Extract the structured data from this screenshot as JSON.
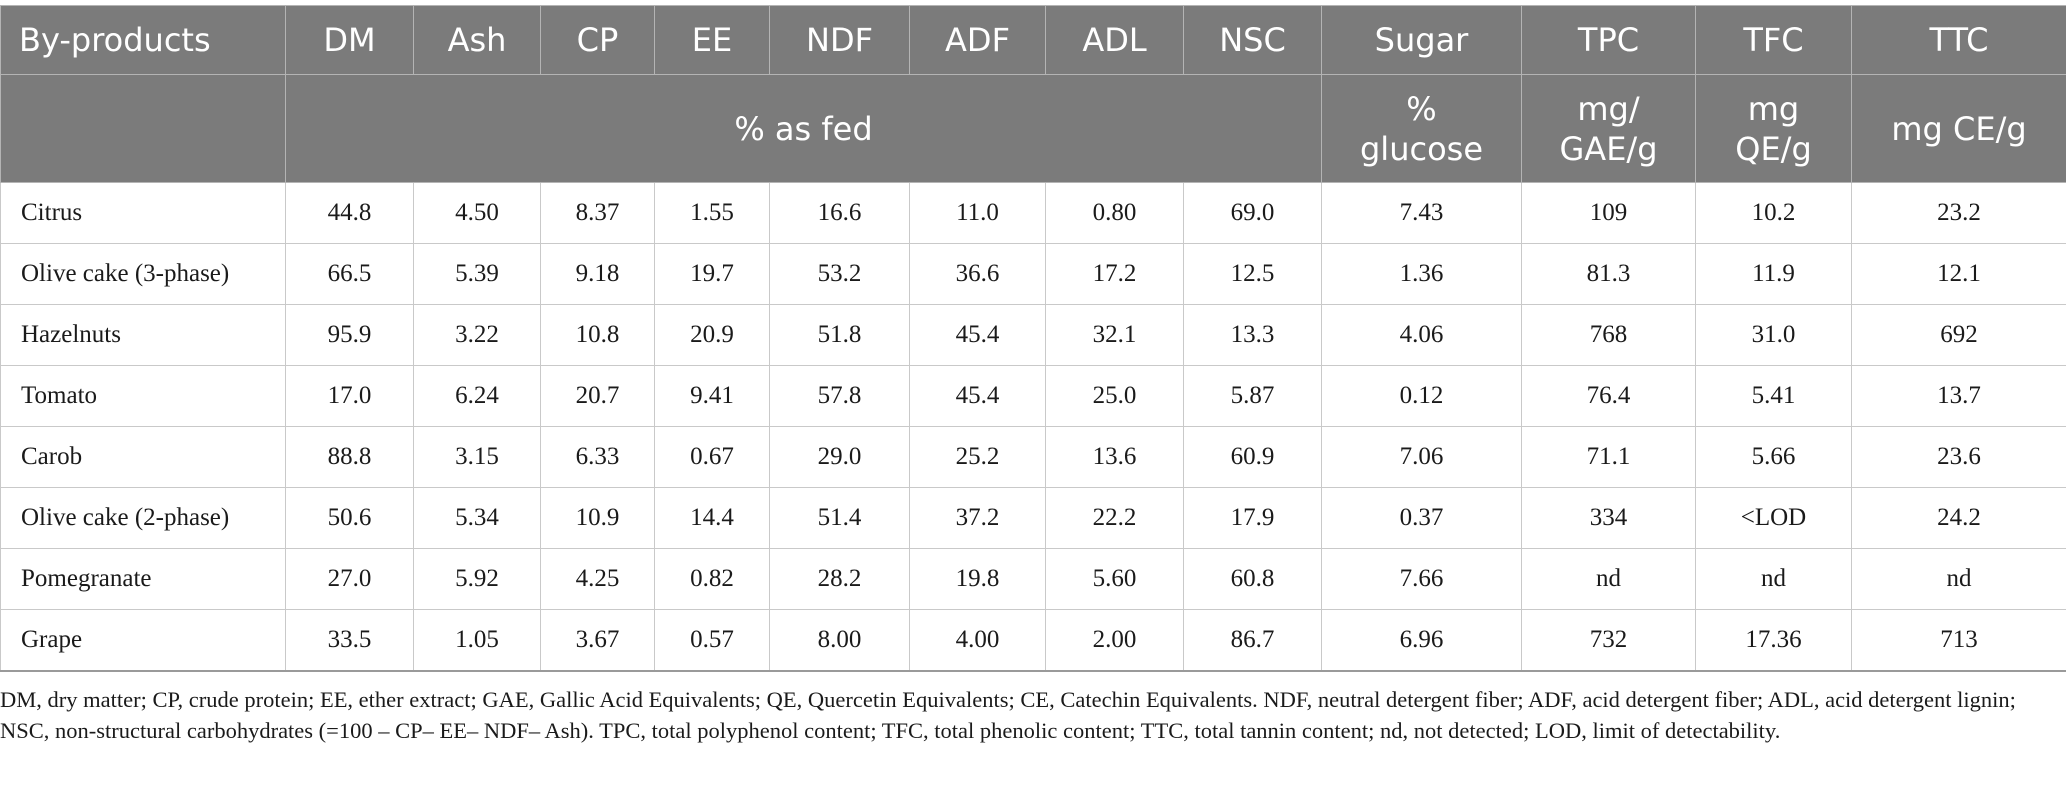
{
  "header": {
    "columns": [
      "By-products",
      "DM",
      "Ash",
      "CP",
      "EE",
      "NDF",
      "ADF",
      "ADL",
      "NSC",
      "Sugar",
      "TPC",
      "TFC",
      "TTC"
    ],
    "unit_as_fed": "% as fed",
    "unit_sugar": "% glucose",
    "unit_tpc": "mg/ GAE/g",
    "unit_tfc": "mg QE/g",
    "unit_ttc": "mg CE/g"
  },
  "rows": [
    [
      "Citrus",
      "44.8",
      "4.50",
      "8.37",
      "1.55",
      "16.6",
      "11.0",
      "0.80",
      "69.0",
      "7.43",
      "109",
      "10.2",
      "23.2"
    ],
    [
      "Olive cake (3-phase)",
      "66.5",
      "5.39",
      "9.18",
      "19.7",
      "53.2",
      "36.6",
      "17.2",
      "12.5",
      "1.36",
      "81.3",
      "11.9",
      "12.1"
    ],
    [
      "Hazelnuts",
      "95.9",
      "3.22",
      "10.8",
      "20.9",
      "51.8",
      "45.4",
      "32.1",
      "13.3",
      "4.06",
      "768",
      "31.0",
      "692"
    ],
    [
      "Tomato",
      "17.0",
      "6.24",
      "20.7",
      "9.41",
      "57.8",
      "45.4",
      "25.0",
      "5.87",
      "0.12",
      "76.4",
      "5.41",
      "13.7"
    ],
    [
      "Carob",
      "88.8",
      "3.15",
      "6.33",
      "0.67",
      "29.0",
      "25.2",
      "13.6",
      "60.9",
      "7.06",
      "71.1",
      "5.66",
      "23.6"
    ],
    [
      "Olive cake (2-phase)",
      "50.6",
      "5.34",
      "10.9",
      "14.4",
      "51.4",
      "37.2",
      "22.2",
      "17.9",
      "0.37",
      "334",
      "<LOD",
      "24.2"
    ],
    [
      "Pomegranate",
      "27.0",
      "5.92",
      "4.25",
      "0.82",
      "28.2",
      "19.8",
      "5.60",
      "60.8",
      "7.66",
      "nd",
      "nd",
      "nd"
    ],
    [
      "Grape",
      "33.5",
      "1.05",
      "3.67",
      "0.57",
      "8.00",
      "4.00",
      "2.00",
      "86.7",
      "6.96",
      "732",
      "17.36",
      "713"
    ]
  ],
  "footnote": "DM, dry matter; CP, crude protein; EE, ether extract; GAE, Gallic Acid Equivalents; QE, Quercetin Equivalents; CE, Catechin Equivalents. NDF, neutral detergent fiber; ADF, acid detergent fiber; ADL, acid detergent lignin; NSC, non-structural carbohydrates (=100 – CP– EE– NDF– Ash). TPC, total polyphenol content; TFC, total phenolic content; TTC, total tannin content; nd, not detected; LOD, limit of detectability."
}
